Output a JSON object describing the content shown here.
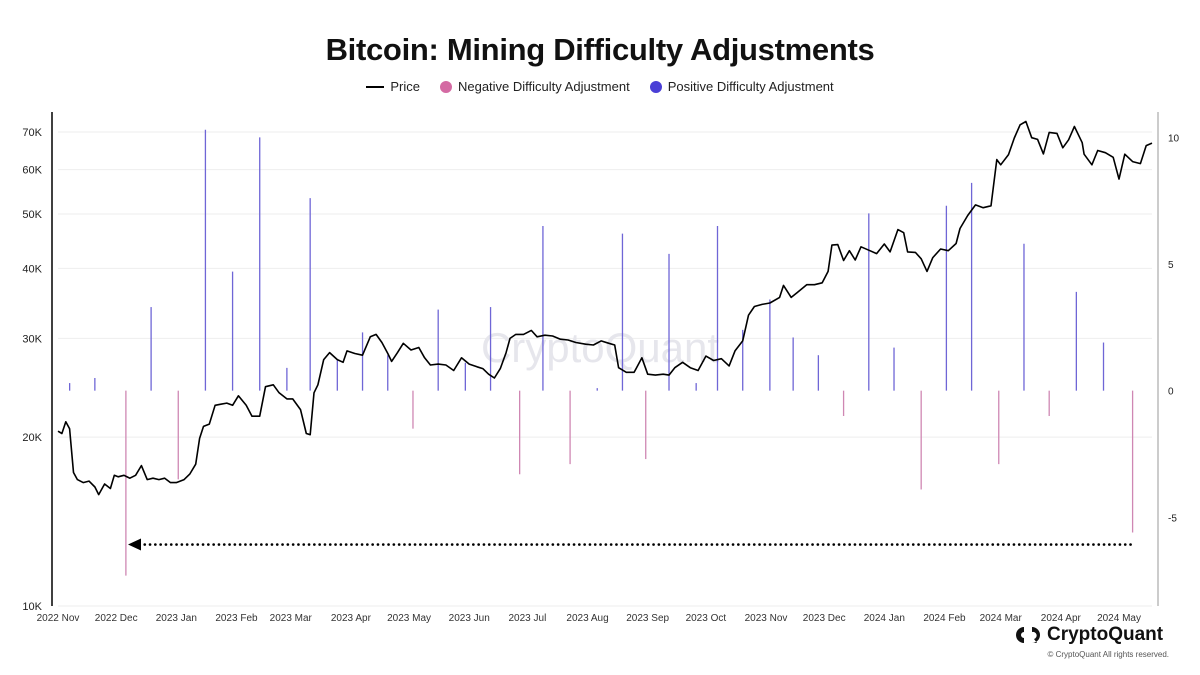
{
  "title": "Bitcoin: Mining Difficulty Adjustments",
  "legend": {
    "price": "Price",
    "negative": "Negative Difficulty Adjustment",
    "positive": "Positive Difficulty Adjustment"
  },
  "colors": {
    "price": "#000000",
    "negative": "#d46aa3",
    "positive": "#4a3fd6",
    "neg_bar": "#cf87b3",
    "pos_bar": "#6f66d6",
    "grid": "#eeeeee"
  },
  "brand": {
    "name": "CryptoQuant",
    "watermark": "CryptoQuant",
    "copyright": "© CryptoQuant All rights reserved."
  },
  "chart_data": {
    "type": "line",
    "x_tick_labels": [
      "2022 Nov",
      "2022 Dec",
      "2023 Jan",
      "2023 Feb",
      "2023 Mar",
      "2023 Apr",
      "2023 May",
      "2023 Jun",
      "2023 Jul",
      "2023 Aug",
      "2023 Sep",
      "2023 Oct",
      "2023 Nov",
      "2023 Dec",
      "2024 Jan",
      "2024 Feb",
      "2024 Mar",
      "2024 Apr",
      "2024 May"
    ],
    "xlim": [
      "2022-11-01",
      "2024-05-18"
    ],
    "left_axis": {
      "ticks": [
        10000,
        20000,
        30000,
        40000,
        50000,
        60000,
        70000
      ],
      "tick_labels": [
        "10K",
        "20K",
        "30K",
        "40K",
        "50K",
        "60K",
        "70K"
      ],
      "scale": "log",
      "ylim": [
        10000,
        76000
      ]
    },
    "right_axis": {
      "ticks": [
        10,
        5,
        0,
        -5
      ],
      "tick_labels": [
        "10",
        "5",
        "0",
        "-5"
      ],
      "ylim": [
        -8.5,
        11
      ]
    },
    "grid": true,
    "legend_position": "top-center",
    "price_series": {
      "name": "Price",
      "points": [
        [
          "2022-11-01",
          20500
        ],
        [
          "2022-11-03",
          20300
        ],
        [
          "2022-11-05",
          21300
        ],
        [
          "2022-11-07",
          20700
        ],
        [
          "2022-11-09",
          17300
        ],
        [
          "2022-11-11",
          16800
        ],
        [
          "2022-11-14",
          16600
        ],
        [
          "2022-11-17",
          16700
        ],
        [
          "2022-11-20",
          16300
        ],
        [
          "2022-11-22",
          15800
        ],
        [
          "2022-11-25",
          16500
        ],
        [
          "2022-11-28",
          16200
        ],
        [
          "2022-11-30",
          17100
        ],
        [
          "2022-12-02",
          17000
        ],
        [
          "2022-12-05",
          17100
        ],
        [
          "2022-12-08",
          16900
        ],
        [
          "2022-12-11",
          17100
        ],
        [
          "2022-12-14",
          17800
        ],
        [
          "2022-12-17",
          16800
        ],
        [
          "2022-12-20",
          16900
        ],
        [
          "2022-12-23",
          16800
        ],
        [
          "2022-12-26",
          16900
        ],
        [
          "2022-12-29",
          16600
        ],
        [
          "2023-01-01",
          16600
        ],
        [
          "2023-01-05",
          16800
        ],
        [
          "2023-01-08",
          17200
        ],
        [
          "2023-01-11",
          17900
        ],
        [
          "2023-01-13",
          19900
        ],
        [
          "2023-01-15",
          20900
        ],
        [
          "2023-01-18",
          21100
        ],
        [
          "2023-01-21",
          22800
        ],
        [
          "2023-01-24",
          22900
        ],
        [
          "2023-01-27",
          23000
        ],
        [
          "2023-01-30",
          22800
        ],
        [
          "2023-02-02",
          23700
        ],
        [
          "2023-02-06",
          22800
        ],
        [
          "2023-02-09",
          21800
        ],
        [
          "2023-02-13",
          21800
        ],
        [
          "2023-02-16",
          24600
        ],
        [
          "2023-02-20",
          24800
        ],
        [
          "2023-02-23",
          24000
        ],
        [
          "2023-02-27",
          23400
        ],
        [
          "2023-03-02",
          23400
        ],
        [
          "2023-03-06",
          22400
        ],
        [
          "2023-03-09",
          20300
        ],
        [
          "2023-03-11",
          20200
        ],
        [
          "2023-03-13",
          24000
        ],
        [
          "2023-03-15",
          24800
        ],
        [
          "2023-03-18",
          27500
        ],
        [
          "2023-03-21",
          28300
        ],
        [
          "2023-03-25",
          27500
        ],
        [
          "2023-03-28",
          27200
        ],
        [
          "2023-03-30",
          28500
        ],
        [
          "2023-04-03",
          28200
        ],
        [
          "2023-04-07",
          28000
        ],
        [
          "2023-04-11",
          30200
        ],
        [
          "2023-04-14",
          30500
        ],
        [
          "2023-04-17",
          29500
        ],
        [
          "2023-04-20",
          28200
        ],
        [
          "2023-04-22",
          27300
        ],
        [
          "2023-04-25",
          28300
        ],
        [
          "2023-04-28",
          29400
        ],
        [
          "2023-05-02",
          28600
        ],
        [
          "2023-05-06",
          28900
        ],
        [
          "2023-05-09",
          27700
        ],
        [
          "2023-05-12",
          26900
        ],
        [
          "2023-05-16",
          27000
        ],
        [
          "2023-05-20",
          26900
        ],
        [
          "2023-05-24",
          26300
        ],
        [
          "2023-05-28",
          27700
        ],
        [
          "2023-06-01",
          27000
        ],
        [
          "2023-06-05",
          26700
        ],
        [
          "2023-06-08",
          26500
        ],
        [
          "2023-06-11",
          25900
        ],
        [
          "2023-06-14",
          25500
        ],
        [
          "2023-06-17",
          26500
        ],
        [
          "2023-06-20",
          28300
        ],
        [
          "2023-06-22",
          30000
        ],
        [
          "2023-06-25",
          30500
        ],
        [
          "2023-06-29",
          30500
        ],
        [
          "2023-07-03",
          31000
        ],
        [
          "2023-07-06",
          30200
        ],
        [
          "2023-07-10",
          30400
        ],
        [
          "2023-07-14",
          30300
        ],
        [
          "2023-07-18",
          29900
        ],
        [
          "2023-07-22",
          29800
        ],
        [
          "2023-07-26",
          29500
        ],
        [
          "2023-07-31",
          29300
        ],
        [
          "2023-08-04",
          29200
        ],
        [
          "2023-08-08",
          29700
        ],
        [
          "2023-08-12",
          29400
        ],
        [
          "2023-08-15",
          29200
        ],
        [
          "2023-08-17",
          26600
        ],
        [
          "2023-08-21",
          26100
        ],
        [
          "2023-08-25",
          26100
        ],
        [
          "2023-08-29",
          27700
        ],
        [
          "2023-09-01",
          25900
        ],
        [
          "2023-09-05",
          25800
        ],
        [
          "2023-09-09",
          25900
        ],
        [
          "2023-09-12",
          25800
        ],
        [
          "2023-09-15",
          26600
        ],
        [
          "2023-09-19",
          27200
        ],
        [
          "2023-09-23",
          26600
        ],
        [
          "2023-09-27",
          26300
        ],
        [
          "2023-10-01",
          27900
        ],
        [
          "2023-10-05",
          27400
        ],
        [
          "2023-10-09",
          27600
        ],
        [
          "2023-10-13",
          26800
        ],
        [
          "2023-10-16",
          28500
        ],
        [
          "2023-10-20",
          29700
        ],
        [
          "2023-10-23",
          33000
        ],
        [
          "2023-10-26",
          34200
        ],
        [
          "2023-10-30",
          34500
        ],
        [
          "2023-11-03",
          34700
        ],
        [
          "2023-11-08",
          35500
        ],
        [
          "2023-11-10",
          37300
        ],
        [
          "2023-11-14",
          35500
        ],
        [
          "2023-11-17",
          36200
        ],
        [
          "2023-11-22",
          37400
        ],
        [
          "2023-11-26",
          37400
        ],
        [
          "2023-11-30",
          37700
        ],
        [
          "2023-12-03",
          39500
        ],
        [
          "2023-12-05",
          44000
        ],
        [
          "2023-12-08",
          44100
        ],
        [
          "2023-12-11",
          41300
        ],
        [
          "2023-12-14",
          43000
        ],
        [
          "2023-12-17",
          41400
        ],
        [
          "2023-12-20",
          43700
        ],
        [
          "2023-12-24",
          43100
        ],
        [
          "2023-12-28",
          42500
        ],
        [
          "2024-01-01",
          44200
        ],
        [
          "2024-01-04",
          42800
        ],
        [
          "2024-01-08",
          46900
        ],
        [
          "2024-01-11",
          46300
        ],
        [
          "2024-01-13",
          42800
        ],
        [
          "2024-01-17",
          42700
        ],
        [
          "2024-01-20",
          41600
        ],
        [
          "2024-01-23",
          39500
        ],
        [
          "2024-01-26",
          41800
        ],
        [
          "2024-01-30",
          43300
        ],
        [
          "2024-02-03",
          43000
        ],
        [
          "2024-02-07",
          44300
        ],
        [
          "2024-02-09",
          47100
        ],
        [
          "2024-02-13",
          49700
        ],
        [
          "2024-02-17",
          51900
        ],
        [
          "2024-02-21",
          51300
        ],
        [
          "2024-02-25",
          51700
        ],
        [
          "2024-02-28",
          62500
        ],
        [
          "2024-03-01",
          61200
        ],
        [
          "2024-03-05",
          63800
        ],
        [
          "2024-03-08",
          68300
        ],
        [
          "2024-03-11",
          72100
        ],
        [
          "2024-03-14",
          73100
        ],
        [
          "2024-03-17",
          68400
        ],
        [
          "2024-03-20",
          67900
        ],
        [
          "2024-03-23",
          64000
        ],
        [
          "2024-03-26",
          69900
        ],
        [
          "2024-03-30",
          69600
        ],
        [
          "2024-04-02",
          65600
        ],
        [
          "2024-04-05",
          67800
        ],
        [
          "2024-04-08",
          71600
        ],
        [
          "2024-04-12",
          67000
        ],
        [
          "2024-04-13",
          63900
        ],
        [
          "2024-04-17",
          61200
        ],
        [
          "2024-04-20",
          64900
        ],
        [
          "2024-04-24",
          64300
        ],
        [
          "2024-04-28",
          63100
        ],
        [
          "2024-05-01",
          57700
        ],
        [
          "2024-05-04",
          63900
        ],
        [
          "2024-05-08",
          62000
        ],
        [
          "2024-05-12",
          61500
        ],
        [
          "2024-05-15",
          66200
        ],
        [
          "2024-05-18",
          66900
        ]
      ]
    },
    "difficulty_adjustments": [
      [
        "2022-11-07",
        0.3
      ],
      [
        "2022-11-20",
        0.5
      ],
      [
        "2022-12-06",
        -7.3
      ],
      [
        "2022-12-19",
        3.3
      ],
      [
        "2023-01-02",
        -3.5
      ],
      [
        "2023-01-16",
        10.3
      ],
      [
        "2023-01-30",
        4.7
      ],
      [
        "2023-02-13",
        10.0
      ],
      [
        "2023-02-27",
        0.9
      ],
      [
        "2023-03-11",
        7.6
      ],
      [
        "2023-03-25",
        1.2
      ],
      [
        "2023-04-07",
        2.3
      ],
      [
        "2023-04-20",
        1.4
      ],
      [
        "2023-05-03",
        -1.5
      ],
      [
        "2023-05-16",
        3.2
      ],
      [
        "2023-05-30",
        1.1
      ],
      [
        "2023-06-12",
        3.3
      ],
      [
        "2023-06-27",
        -3.3
      ],
      [
        "2023-07-09",
        6.5
      ],
      [
        "2023-07-23",
        -2.9
      ],
      [
        "2023-08-06",
        0.1
      ],
      [
        "2023-08-19",
        6.2
      ],
      [
        "2023-08-31",
        -2.7
      ],
      [
        "2023-09-12",
        5.4
      ],
      [
        "2023-09-26",
        0.3
      ],
      [
        "2023-10-07",
        6.5
      ],
      [
        "2023-10-20",
        2.4
      ],
      [
        "2023-11-03",
        3.6
      ],
      [
        "2023-11-15",
        2.1
      ],
      [
        "2023-11-28",
        1.4
      ],
      [
        "2023-12-11",
        -1.0
      ],
      [
        "2023-12-24",
        7.0
      ],
      [
        "2024-01-06",
        1.7
      ],
      [
        "2024-01-20",
        -3.9
      ],
      [
        "2024-02-02",
        7.3
      ],
      [
        "2024-02-15",
        8.2
      ],
      [
        "2024-02-29",
        -2.9
      ],
      [
        "2024-03-13",
        5.8
      ],
      [
        "2024-03-26",
        -1.0
      ],
      [
        "2024-04-09",
        3.9
      ],
      [
        "2024-04-23",
        1.9
      ],
      [
        "2024-05-08",
        -5.6
      ]
    ],
    "annotation": "dotted arrow pointing left at the level of the latest negative adjustment"
  }
}
